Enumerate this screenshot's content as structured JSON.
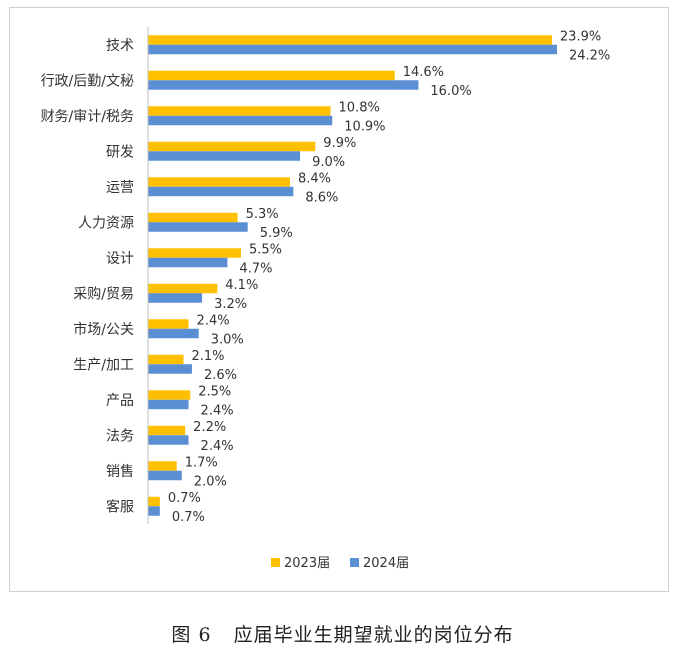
{
  "caption": {
    "figure_no": "图 6",
    "title": "应届毕业生期望就业的岗位分布"
  },
  "chart_data": {
    "type": "bar",
    "orientation": "horizontal",
    "categories": [
      "技术",
      "行政/后勤/文秘",
      "财务/审计/税务",
      "研发",
      "运营",
      "人力资源",
      "设计",
      "采购/贸易",
      "市场/公关",
      "生产/加工",
      "产品",
      "法务",
      "销售",
      "客服"
    ],
    "series": [
      {
        "name": "2023届",
        "color": "#FFC000",
        "values": [
          23.9,
          14.6,
          10.8,
          9.9,
          8.4,
          5.3,
          5.5,
          4.1,
          2.4,
          2.1,
          2.5,
          2.2,
          1.7,
          0.7
        ],
        "labels": [
          "23.9%",
          "14.6%",
          "10.8%",
          "9.9%",
          "8.4%",
          "5.3%",
          "5.5%",
          "4.1%",
          "2.4%",
          "2.1%",
          "2.5%",
          "2.2%",
          "1.7%",
          "0.7%"
        ]
      },
      {
        "name": "2024届",
        "color": "#5B8FD3",
        "values": [
          24.2,
          16.0,
          10.9,
          9.0,
          8.6,
          5.9,
          4.7,
          3.2,
          3.0,
          2.6,
          2.4,
          2.4,
          2.0,
          0.7
        ],
        "labels": [
          "24.2%",
          "16.0%",
          "10.9%",
          "9.0%",
          "8.6%",
          "5.9%",
          "4.7%",
          "3.2%",
          "3.0%",
          "2.6%",
          "2.4%",
          "2.4%",
          "2.0%",
          "0.7%"
        ]
      }
    ],
    "value_unit": "%",
    "xlim": [
      0,
      30
    ],
    "grid": false,
    "legend_position": "bottom-center"
  }
}
